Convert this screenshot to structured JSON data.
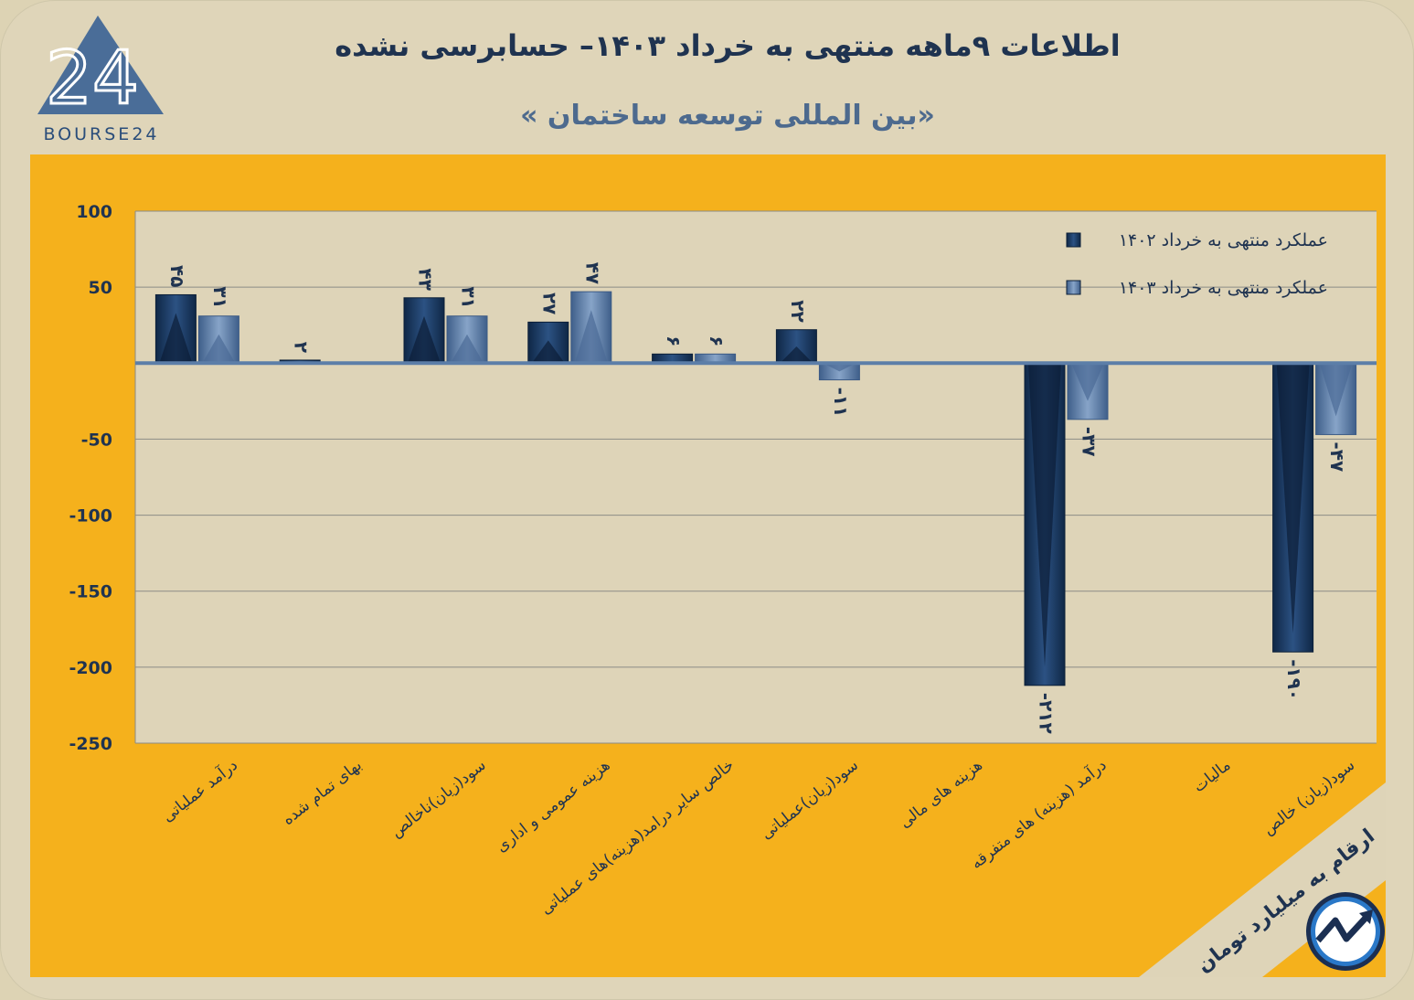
{
  "header": {
    "title": "اطلاعات ۹ماهه منتهی به خرداد ۱۴۰۳– حسابرسی نشده",
    "subtitle": "«بین المللی توسعه ساختمان »",
    "logo_text": "BOURSE24",
    "logo_mark": "24"
  },
  "footer_note": "ارقام به میلیارد تومان",
  "colors": {
    "background": "#dfd5b9",
    "panel": "#f5b11c",
    "plot_area": "#ded4b8",
    "series_1402": "#1d3d68",
    "series_1403": "#5d7ca6",
    "text_dark": "#1f3350"
  },
  "chart_data": {
    "type": "bar",
    "categories": [
      "درآمد عملیاتی",
      "بهای تمام شده",
      "سود(زیان)ناخالص",
      "هزینه عمومی و اداری",
      "خالص سایر درامد(هزینه)های عملیاتی",
      "سود(زیان)عملیاتی",
      "هزینه های مالی",
      "درآمد (هزینه) های متفرقه",
      "مالیات",
      "سود(زیان) خالص"
    ],
    "series": [
      {
        "name": "عملکرد منتهی به خرداد ۱۴۰۲",
        "values": [
          45,
          2,
          43,
          27,
          6,
          22,
          null,
          -212,
          null,
          -190
        ],
        "labels": [
          "۴۵",
          "۲",
          "۴۳",
          "۲۷",
          "۶",
          "۲۲",
          "",
          "-۲۱۲",
          "",
          "-۱۹۰"
        ]
      },
      {
        "name": "عملکرد منتهی به خرداد ۱۴۰۳",
        "values": [
          31,
          null,
          31,
          47,
          6,
          -11,
          null,
          -37,
          null,
          -47
        ],
        "labels": [
          "۳۱",
          "",
          "۳۱",
          "۴۷",
          "۶",
          "-۱۱",
          "",
          "-۳۷",
          "",
          "-۴۷"
        ]
      }
    ],
    "y_ticks": [
      100,
      50,
      0,
      -50,
      -100,
      -150,
      -200,
      -250
    ],
    "y_tick_labels": [
      "100",
      "50",
      "",
      "-50",
      "-100",
      "-150",
      "-200",
      "-250"
    ],
    "ylim": [
      -250,
      100
    ],
    "grid": true,
    "legend_position": "top-right"
  }
}
